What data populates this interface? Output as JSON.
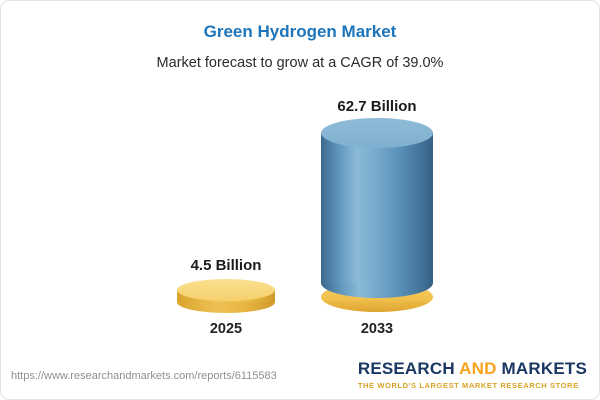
{
  "header": {
    "title": "Green Hydrogen Market",
    "subtitle": "Market forecast to grow at a CAGR of 39.0%"
  },
  "chart_data": {
    "type": "bar",
    "variant": "3d-cylinder",
    "title": "Green Hydrogen Market",
    "subtitle": "Market forecast to grow at a CAGR of 39.0%",
    "cagr_percent": 39.0,
    "categories": [
      "2025",
      "2033"
    ],
    "values": [
      4.5,
      62.7
    ],
    "value_labels": [
      "4.5 Billion",
      "62.7 Billion"
    ],
    "unit": "Billion",
    "legend": "none",
    "axes": "none",
    "colors": {
      "bar_2025": "#f3c85c",
      "bar_2033": "#5d93ba",
      "bar_2033_base": "#f1c14e",
      "title_text": "#1c75bb"
    }
  },
  "footer": {
    "url": "https://www.researchandmarkets.com/reports/6115583",
    "logo": {
      "word1": "RESEARCH",
      "word2": "AND",
      "word3": "MARKETS",
      "tagline": "THE WORLD'S LARGEST MARKET RESEARCH STORE"
    }
  }
}
